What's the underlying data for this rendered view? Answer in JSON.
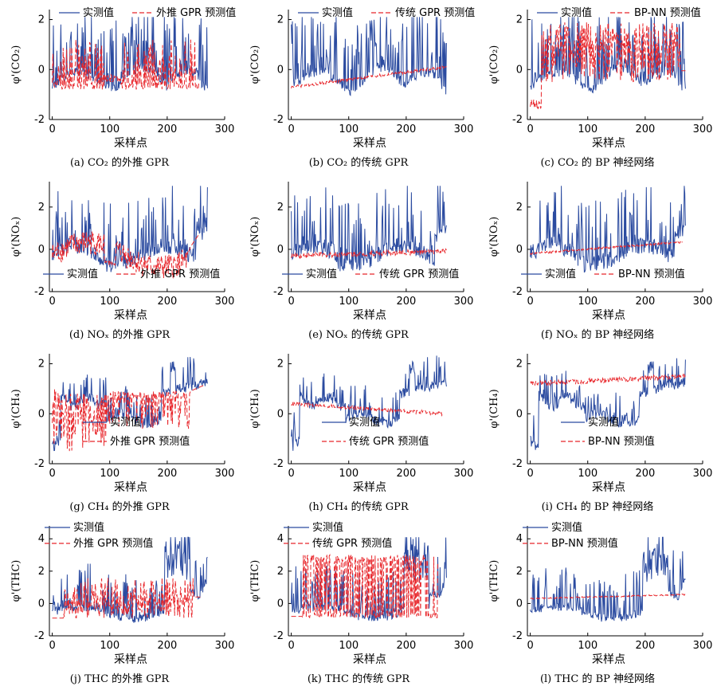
{
  "chart_data": [
    {
      "id": "a",
      "type": "line",
      "ylabel": "φ'(CO₂)",
      "xlabel": "采样点",
      "caption": "(a)  CO₂ 的外推 GPR",
      "xlim": [
        -5,
        300
      ],
      "ylim": [
        -2,
        2.4
      ],
      "xticks": [
        0,
        100,
        200,
        300
      ],
      "yticks": [
        -2,
        0,
        2
      ],
      "legend": "top",
      "series": [
        {
          "name": "实测值",
          "color": "#2b4ba0",
          "dash": "solid"
        },
        {
          "name": "外推 GPR 预测值",
          "color": "#e8262b",
          "dash": "dashed"
        }
      ],
      "signals": {
        "actual": {
          "base": -0.5,
          "amp": 1.8,
          "spike": 0.3,
          "seed": 1,
          "mode": "co2"
        },
        "pred": {
          "base": -0.2,
          "amp": 1.2,
          "spike": 0.25,
          "seed": 2,
          "mode": "co2pred",
          "end": 255
        }
      }
    },
    {
      "id": "b",
      "type": "line",
      "ylabel": "φ'(CO₂)",
      "xlabel": "采样点",
      "caption": "(b)  CO₂ 的传统 GPR",
      "xlim": [
        -5,
        300
      ],
      "ylim": [
        -2,
        2.4
      ],
      "xticks": [
        0,
        100,
        200,
        300
      ],
      "yticks": [
        -2,
        0,
        2
      ],
      "legend": "top",
      "series": [
        {
          "name": "实测值",
          "color": "#2b4ba0",
          "dash": "solid"
        },
        {
          "name": "传统 GPR 预测值",
          "color": "#e8262b",
          "dash": "dashed"
        }
      ],
      "signals": {
        "actual": {
          "base": -0.5,
          "amp": 1.8,
          "spike": 0.3,
          "seed": 3,
          "mode": "co2"
        },
        "pred": {
          "mode": "flat",
          "from": -0.7,
          "to": 0.1,
          "noise": 0.12,
          "seed": 4,
          "end": 270
        }
      }
    },
    {
      "id": "c",
      "type": "line",
      "ylabel": "φ'(CO₂)",
      "xlabel": "采样点",
      "caption": "(c)  CO₂ 的 BP 神经网络",
      "xlim": [
        -5,
        300
      ],
      "ylim": [
        -2,
        2.4
      ],
      "xticks": [
        0,
        100,
        200,
        300
      ],
      "yticks": [
        -2,
        0,
        2
      ],
      "legend": "top",
      "series": [
        {
          "name": "实测值",
          "color": "#2b4ba0",
          "dash": "solid"
        },
        {
          "name": "BP-NN 预测值",
          "color": "#e8262b",
          "dash": "dashed"
        }
      ],
      "signals": {
        "actual": {
          "base": -0.5,
          "amp": 1.8,
          "spike": 0.3,
          "seed": 5,
          "mode": "co2"
        },
        "pred": {
          "base": 0.8,
          "amp": 1.6,
          "spike": 0.5,
          "seed": 6,
          "mode": "bpco2",
          "end": 270
        }
      }
    },
    {
      "id": "d",
      "type": "line",
      "ylabel": "φ'(NOₓ)",
      "xlabel": "采样点",
      "caption": "(d)  NOₓ 的外推 GPR",
      "xlim": [
        -5,
        300
      ],
      "ylim": [
        -2,
        3.2
      ],
      "xticks": [
        0,
        100,
        200,
        300
      ],
      "yticks": [
        -2,
        0,
        2
      ],
      "legend": "bottom",
      "series": [
        {
          "name": "实测值",
          "color": "#2b4ba0",
          "dash": "solid"
        },
        {
          "name": "外推 GPR 预测值",
          "color": "#e8262b",
          "dash": "dashed"
        }
      ],
      "signals": {
        "actual": {
          "base": -0.3,
          "amp": 2.8,
          "spike": 0.2,
          "seed": 7,
          "mode": "nox"
        },
        "pred": {
          "base": 0.0,
          "amp": 1.0,
          "spike": 0.3,
          "seed": 8,
          "mode": "noxpred",
          "end": 255
        }
      }
    },
    {
      "id": "e",
      "type": "line",
      "ylabel": "φ'(NOₓ)",
      "xlabel": "采样点",
      "caption": "(e)  NOₓ 的传统 GPR",
      "xlim": [
        -5,
        300
      ],
      "ylim": [
        -2,
        3.2
      ],
      "xticks": [
        0,
        100,
        200,
        300
      ],
      "yticks": [
        -2,
        0,
        2
      ],
      "legend": "bottom",
      "series": [
        {
          "name": "实测值",
          "color": "#2b4ba0",
          "dash": "solid"
        },
        {
          "name": "传统 GPR 预测值",
          "color": "#e8262b",
          "dash": "dashed"
        }
      ],
      "signals": {
        "actual": {
          "base": -0.3,
          "amp": 2.8,
          "spike": 0.2,
          "seed": 9,
          "mode": "nox"
        },
        "pred": {
          "mode": "flat",
          "from": -0.3,
          "to": -0.1,
          "noise": 0.25,
          "seed": 10,
          "end": 270
        }
      }
    },
    {
      "id": "f",
      "type": "line",
      "ylabel": "φ'(NOₓ)",
      "xlabel": "采样点",
      "caption": "(f)  NOₓ 的 BP 神经网络",
      "xlim": [
        -5,
        300
      ],
      "ylim": [
        -2,
        3.2
      ],
      "xticks": [
        0,
        100,
        200,
        300
      ],
      "yticks": [
        -2,
        0,
        2
      ],
      "legend": "bottom",
      "series": [
        {
          "name": "实测值",
          "color": "#2b4ba0",
          "dash": "solid"
        },
        {
          "name": "BP-NN 预测值",
          "color": "#e8262b",
          "dash": "dashed"
        }
      ],
      "signals": {
        "actual": {
          "base": -0.3,
          "amp": 2.8,
          "spike": 0.2,
          "seed": 11,
          "mode": "nox"
        },
        "pred": {
          "mode": "flat",
          "from": -0.2,
          "to": 0.35,
          "noise": 0.1,
          "seed": 12,
          "end": 265
        }
      }
    },
    {
      "id": "g",
      "type": "line",
      "ylabel": "φ'(CH₄)",
      "xlabel": "采样点",
      "caption": "(g)  CH₄ 的外推 GPR",
      "xlim": [
        -5,
        300
      ],
      "ylim": [
        -2,
        2.4
      ],
      "xticks": [
        0,
        100,
        200,
        300
      ],
      "yticks": [
        -2,
        0,
        2
      ],
      "legend": "mid",
      "series": [
        {
          "name": "实测值",
          "color": "#2b4ba0",
          "dash": "solid"
        },
        {
          "name": "外推 GPR 预测值",
          "color": "#e8262b",
          "dash": "dashed"
        }
      ],
      "signals": {
        "actual": {
          "base": 0.3,
          "amp": 1.0,
          "spike": 0.2,
          "seed": 13,
          "mode": "ch4"
        },
        "pred": {
          "base": 0.3,
          "amp": 1.0,
          "spike": 0.3,
          "seed": 14,
          "mode": "ch4pred",
          "end": 265
        }
      }
    },
    {
      "id": "h",
      "type": "line",
      "ylabel": "φ'(CH₄)",
      "xlabel": "采样点",
      "caption": "(h)  CH₄ 的传统 GPR",
      "xlim": [
        -5,
        300
      ],
      "ylim": [
        -2,
        2.4
      ],
      "xticks": [
        0,
        100,
        200,
        300
      ],
      "yticks": [
        -2,
        0,
        2
      ],
      "legend": "mid",
      "series": [
        {
          "name": "实测值",
          "color": "#2b4ba0",
          "dash": "solid"
        },
        {
          "name": "传统 GPR 预测值",
          "color": "#e8262b",
          "dash": "dashed"
        }
      ],
      "signals": {
        "actual": {
          "base": 0.3,
          "amp": 1.0,
          "spike": 0.2,
          "seed": 15,
          "mode": "ch4"
        },
        "pred": {
          "mode": "flat",
          "from": 0.4,
          "to": 0.0,
          "noise": 0.15,
          "seed": 16,
          "end": 265
        }
      }
    },
    {
      "id": "i",
      "type": "line",
      "ylabel": "φ'(CH₄)",
      "xlabel": "采样点",
      "caption": "(i)  CH₄ 的 BP 神经网络",
      "xlim": [
        -5,
        300
      ],
      "ylim": [
        -2,
        2.4
      ],
      "xticks": [
        0,
        100,
        200,
        300
      ],
      "yticks": [
        -2,
        0,
        2
      ],
      "legend": "mid",
      "series": [
        {
          "name": "实测值",
          "color": "#2b4ba0",
          "dash": "solid"
        },
        {
          "name": "BP-NN 预测值",
          "color": "#e8262b",
          "dash": "dashed"
        }
      ],
      "signals": {
        "actual": {
          "base": 0.3,
          "amp": 1.0,
          "spike": 0.2,
          "seed": 17,
          "mode": "ch4"
        },
        "pred": {
          "mode": "flat",
          "from": 1.2,
          "to": 1.5,
          "noise": 0.2,
          "seed": 18,
          "end": 270
        }
      }
    },
    {
      "id": "j",
      "type": "line",
      "ylabel": "φ'(THC)",
      "xlabel": "采样点",
      "caption": "(j)  THC 的外推 GPR",
      "xlim": [
        -5,
        300
      ],
      "ylim": [
        -2,
        4.8
      ],
      "xticks": [
        0,
        100,
        200,
        300
      ],
      "yticks": [
        -2,
        0,
        2,
        4
      ],
      "legend": "top",
      "series": [
        {
          "name": "实测值",
          "color": "#2b4ba0",
          "dash": "solid"
        },
        {
          "name": "外推 GPR 预测值",
          "color": "#e8262b",
          "dash": "dashed"
        }
      ],
      "signals": {
        "actual": {
          "base": 0.5,
          "amp": 2.5,
          "spike": 0.25,
          "seed": 19,
          "mode": "thc"
        },
        "pred": {
          "base": 0.4,
          "amp": 1.3,
          "spike": 0.25,
          "seed": 20,
          "mode": "thcpred",
          "end": 260
        }
      }
    },
    {
      "id": "k",
      "type": "line",
      "ylabel": "φ'(THC)",
      "xlabel": "采样点",
      "caption": "(k)  THC 的传统 GPR",
      "xlim": [
        -5,
        300
      ],
      "ylim": [
        -2,
        4.8
      ],
      "xticks": [
        0,
        100,
        200,
        300
      ],
      "yticks": [
        -2,
        0,
        2,
        4
      ],
      "legend": "top",
      "series": [
        {
          "name": "实测值",
          "color": "#2b4ba0",
          "dash": "solid"
        },
        {
          "name": "传统 GPR 预测值",
          "color": "#e8262b",
          "dash": "dashed"
        }
      ],
      "signals": {
        "actual": {
          "base": 0.5,
          "amp": 2.5,
          "spike": 0.25,
          "seed": 21,
          "mode": "thc"
        },
        "pred": {
          "base": 1.4,
          "amp": 2.8,
          "spike": 0.5,
          "seed": 22,
          "mode": "thcgpr",
          "end": 255
        }
      }
    },
    {
      "id": "l",
      "type": "line",
      "ylabel": "φ'(THC)",
      "xlabel": "采样点",
      "caption": "(l)  THC 的 BP 神经网络",
      "xlim": [
        -5,
        300
      ],
      "ylim": [
        -2,
        4.8
      ],
      "xticks": [
        0,
        100,
        200,
        300
      ],
      "yticks": [
        -2,
        0,
        2,
        4
      ],
      "legend": "top",
      "series": [
        {
          "name": "实测值",
          "color": "#2b4ba0",
          "dash": "solid"
        },
        {
          "name": "BP-NN 预测值",
          "color": "#e8262b",
          "dash": "dashed"
        }
      ],
      "signals": {
        "actual": {
          "base": 0.5,
          "amp": 2.5,
          "spike": 0.25,
          "seed": 23,
          "mode": "thc"
        },
        "pred": {
          "mode": "flat",
          "from": 0.3,
          "to": 0.55,
          "noise": 0.08,
          "seed": 24,
          "end": 270
        }
      }
    }
  ]
}
